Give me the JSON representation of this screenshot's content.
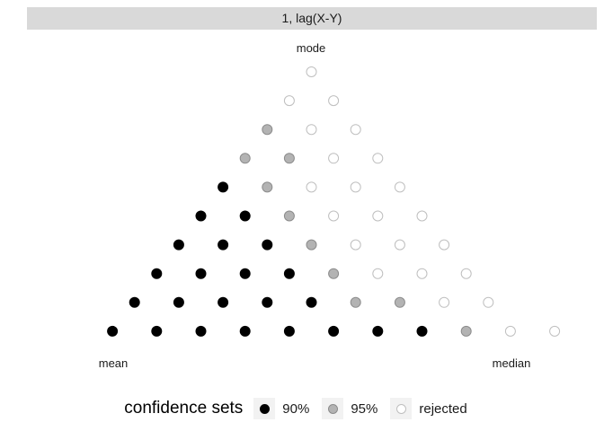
{
  "panel": {
    "strip_label": "1, lag(X-Y)"
  },
  "corners": {
    "top": "mode",
    "left": "mean",
    "right": "median"
  },
  "legend": {
    "title": "confidence sets",
    "items": [
      {
        "key": "90",
        "label": "90%",
        "fill": "#000000",
        "stroke": "#000000"
      },
      {
        "key": "95",
        "label": "95%",
        "fill": "#b3b3b3",
        "stroke": "#8c8c8c"
      },
      {
        "key": "rej",
        "label": "rejected",
        "fill": "#ffffff",
        "stroke": "#bfbfbf"
      }
    ]
  },
  "chart_data": {
    "type": "scatter",
    "title": "",
    "grid": false,
    "legend_position": "bottom",
    "rows_top_to_bottom": [
      [
        "rej"
      ],
      [
        "rej",
        "rej"
      ],
      [
        "95",
        "rej",
        "rej"
      ],
      [
        "95",
        "95",
        "rej",
        "rej"
      ],
      [
        "90",
        "95",
        "rej",
        "rej",
        "rej"
      ],
      [
        "90",
        "90",
        "95",
        "rej",
        "rej",
        "rej"
      ],
      [
        "90",
        "90",
        "90",
        "95",
        "rej",
        "rej",
        "rej"
      ],
      [
        "90",
        "90",
        "90",
        "90",
        "95",
        "rej",
        "rej",
        "rej"
      ],
      [
        "90",
        "90",
        "90",
        "90",
        "90",
        "95",
        "95",
        "rej",
        "rej"
      ],
      [
        "90",
        "90",
        "90",
        "90",
        "90",
        "90",
        "90",
        "90",
        "95",
        "rej",
        "rej"
      ]
    ]
  }
}
